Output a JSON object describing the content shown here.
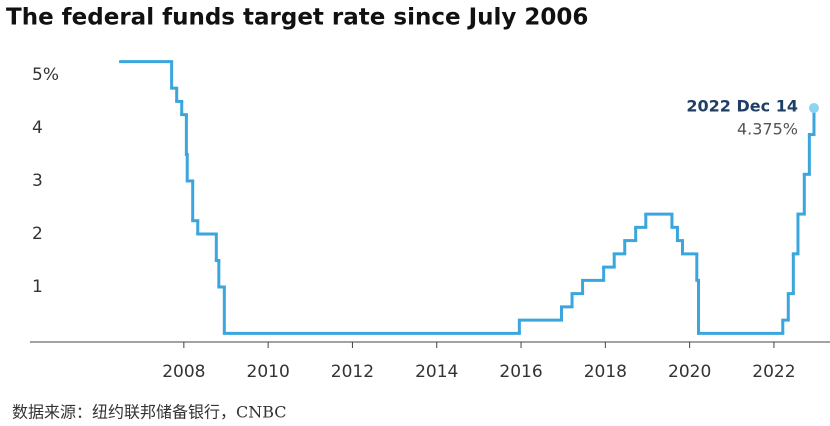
{
  "chart_data": {
    "type": "step",
    "title": "The federal funds target rate since July 2006",
    "annotation_title": "2022 Dec 14",
    "annotation_value": "4.375%",
    "source": "数据来源：纽约联邦储备银行，CNBC",
    "x": [
      2006.5,
      2007.71,
      2007.83,
      2007.95,
      2008.06,
      2008.08,
      2008.21,
      2008.33,
      2008.77,
      2008.83,
      2008.96,
      2015.96,
      2016.96,
      2017.21,
      2017.46,
      2017.96,
      2018.21,
      2018.46,
      2018.72,
      2018.96,
      2019.58,
      2019.71,
      2019.83,
      2020.17,
      2020.21,
      2022.21,
      2022.34,
      2022.46,
      2022.57,
      2022.72,
      2022.84,
      2022.95
    ],
    "series": [
      {
        "name": "Federal funds target rate",
        "color": "#3aa6dd",
        "values": [
          5.25,
          4.75,
          4.5,
          4.25,
          3.5,
          3.0,
          2.25,
          2.0,
          1.5,
          1.0,
          0.125,
          0.375,
          0.625,
          0.875,
          1.125,
          1.375,
          1.625,
          1.875,
          2.125,
          2.375,
          2.125,
          1.875,
          1.625,
          1.125,
          0.125,
          0.375,
          0.875,
          1.625,
          2.375,
          3.125,
          3.875,
          4.375
        ]
      }
    ],
    "xlim": [
      2004.35,
      2023.33
    ],
    "ylim": [
      0,
      5.3
    ],
    "xticks": [
      2008,
      2010,
      2012,
      2014,
      2016,
      2018,
      2020,
      2022
    ],
    "yticks": [
      1,
      2,
      3,
      4,
      {
        "value": 5,
        "label": "5%"
      }
    ]
  }
}
